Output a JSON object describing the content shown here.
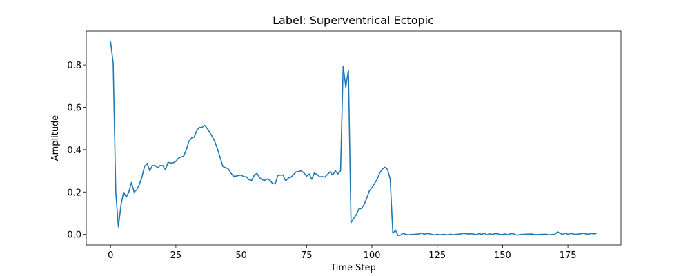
{
  "chart_data": {
    "type": "line",
    "title": "Label: Superventrical Ectopic",
    "xlabel": "Time Step",
    "ylabel": "Amplitude",
    "color": "#1f77b4",
    "grid": false,
    "x": [
      0,
      1,
      2,
      3,
      4,
      5,
      6,
      7,
      8,
      9,
      10,
      11,
      12,
      13,
      14,
      15,
      16,
      17,
      18,
      19,
      20,
      21,
      22,
      23,
      24,
      25,
      26,
      27,
      28,
      29,
      30,
      31,
      32,
      33,
      34,
      35,
      36,
      37,
      38,
      39,
      40,
      41,
      42,
      43,
      44,
      45,
      46,
      47,
      48,
      49,
      50,
      51,
      52,
      53,
      54,
      55,
      56,
      57,
      58,
      59,
      60,
      61,
      62,
      63,
      64,
      65,
      66,
      67,
      68,
      69,
      70,
      71,
      72,
      73,
      74,
      75,
      76,
      77,
      78,
      79,
      80,
      81,
      82,
      83,
      84,
      85,
      86,
      87,
      88,
      89,
      90,
      91,
      92,
      93,
      94,
      95,
      96,
      97,
      98,
      99,
      100,
      101,
      102,
      103,
      104,
      105,
      106,
      107,
      108,
      109,
      110,
      111,
      112,
      113,
      114,
      115,
      116,
      117,
      118,
      119,
      120,
      121,
      122,
      123,
      124,
      125,
      126,
      127,
      128,
      129,
      130,
      131,
      132,
      133,
      134,
      135,
      136,
      137,
      138,
      139,
      140,
      141,
      142,
      143,
      144,
      145,
      146,
      147,
      148,
      149,
      150,
      151,
      152,
      153,
      154,
      155,
      156,
      157,
      158,
      159,
      160,
      161,
      162,
      163,
      164,
      165,
      166,
      167,
      168,
      169,
      170,
      171,
      172,
      173,
      174,
      175,
      176,
      177,
      178,
      179,
      180,
      181,
      182,
      183,
      184,
      185,
      186
    ],
    "values": [
      0.91,
      0.81,
      0.2,
      0.035,
      0.14,
      0.2,
      0.175,
      0.2,
      0.245,
      0.2,
      0.21,
      0.235,
      0.27,
      0.32,
      0.335,
      0.3,
      0.325,
      0.325,
      0.315,
      0.325,
      0.325,
      0.305,
      0.34,
      0.337,
      0.338,
      0.345,
      0.36,
      0.365,
      0.37,
      0.4,
      0.44,
      0.455,
      0.46,
      0.49,
      0.505,
      0.505,
      0.515,
      0.5,
      0.48,
      0.46,
      0.435,
      0.4,
      0.36,
      0.32,
      0.315,
      0.31,
      0.29,
      0.275,
      0.275,
      0.278,
      0.28,
      0.272,
      0.272,
      0.258,
      0.255,
      0.28,
      0.288,
      0.268,
      0.258,
      0.255,
      0.262,
      0.255,
      0.24,
      0.238,
      0.278,
      0.28,
      0.28,
      0.252,
      0.266,
      0.27,
      0.282,
      0.295,
      0.297,
      0.3,
      0.29,
      0.275,
      0.285,
      0.26,
      0.29,
      0.283,
      0.272,
      0.273,
      0.27,
      0.283,
      0.295,
      0.28,
      0.3,
      0.285,
      0.3,
      0.795,
      0.695,
      0.775,
      0.055,
      0.075,
      0.092,
      0.12,
      0.122,
      0.14,
      0.17,
      0.205,
      0.22,
      0.24,
      0.26,
      0.29,
      0.308,
      0.317,
      0.306,
      0.26,
      0.005,
      0.02,
      -0.005,
      -0.003,
      0.005,
      0.0,
      -0.002,
      0.0,
      0.0,
      0.001,
      0.002,
      0.006,
      0.001,
      0.004,
      0.003,
      0.0,
      -0.003,
      0.001,
      -0.002,
      0.0,
      0.0,
      -0.003,
      0.001,
      -0.002,
      0.0,
      0.001,
      0.002,
      0.005,
      0.003,
      0.002,
      0.003,
      0.001,
      -0.001,
      0.004,
      0.0,
      0.006,
      -0.002,
      0.003,
      0.0,
      0.003,
      0.004,
      -0.001,
      0.0,
      0.002,
      -0.002,
      0.003,
      0.004,
      -0.002,
      -0.003,
      0.0,
      0.0,
      0.001,
      0.001,
      0.002,
      0.0,
      -0.001,
      0.0,
      0.0,
      0.001,
      0.0,
      -0.002,
      0.0,
      0.0,
      0.012,
      0.005,
      0.0,
      0.006,
      0.0,
      0.005,
      0.002,
      0.0,
      0.002,
      0.003,
      0.005,
      0.002,
      0.001,
      0.005,
      0.002,
      0.006
    ],
    "xlim": [
      -9.3,
      195.3
    ],
    "ylim": [
      -0.05,
      0.96
    ],
    "xticks": [
      0,
      25,
      50,
      75,
      100,
      125,
      150,
      175
    ],
    "yticks": [
      {
        "value": 0,
        "label": "0.0"
      },
      0.2,
      0.4,
      0.6,
      0.8
    ]
  }
}
